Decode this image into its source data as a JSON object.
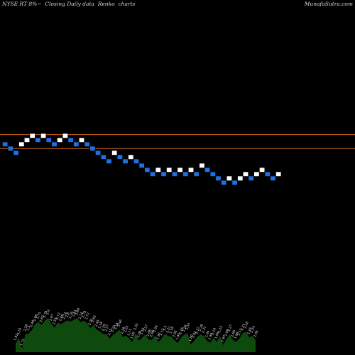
{
  "header": {
    "title": "NYSE RT 8%~  Closing Daily data  Renko  charts",
    "watermark": "MunafaSutra.com"
  },
  "colors": {
    "background": "#000000",
    "up_brick": "#ffffff",
    "down_brick": "#1e6fe0",
    "brick_stroke": "#000000",
    "reference_line": "#d2691e",
    "volume": "#0e4a0e"
  },
  "chart_data": {
    "type": "renko",
    "reference_lines": [
      5.92,
      5.3
    ],
    "bricks": [
      {
        "d": "down",
        "y": 5.49
      },
      {
        "d": "down",
        "y": 5.3
      },
      {
        "d": "down",
        "y": 5.11
      },
      {
        "d": "up",
        "y": 5.49
      },
      {
        "d": "up",
        "y": 5.68
      },
      {
        "d": "up",
        "y": 5.87
      },
      {
        "d": "down",
        "y": 5.68
      },
      {
        "d": "up",
        "y": 5.87
      },
      {
        "d": "down",
        "y": 5.68
      },
      {
        "d": "down",
        "y": 5.49
      },
      {
        "d": "up",
        "y": 5.68
      },
      {
        "d": "up",
        "y": 5.87
      },
      {
        "d": "down",
        "y": 5.68
      },
      {
        "d": "down",
        "y": 5.49
      },
      {
        "d": "up",
        "y": 5.68
      },
      {
        "d": "down",
        "y": 5.49
      },
      {
        "d": "down",
        "y": 5.3
      },
      {
        "d": "down",
        "y": 5.11
      },
      {
        "d": "down",
        "y": 4.92
      },
      {
        "d": "down",
        "y": 4.73
      },
      {
        "d": "up",
        "y": 5.11
      },
      {
        "d": "down",
        "y": 4.92
      },
      {
        "d": "down",
        "y": 4.73
      },
      {
        "d": "up",
        "y": 4.92
      },
      {
        "d": "down",
        "y": 4.73
      },
      {
        "d": "down",
        "y": 4.54
      },
      {
        "d": "down",
        "y": 4.35
      },
      {
        "d": "down",
        "y": 4.16
      },
      {
        "d": "up",
        "y": 4.35
      },
      {
        "d": "down",
        "y": 4.16
      },
      {
        "d": "up",
        "y": 4.35
      },
      {
        "d": "down",
        "y": 4.16
      },
      {
        "d": "up",
        "y": 4.35
      },
      {
        "d": "down",
        "y": 4.16
      },
      {
        "d": "up",
        "y": 4.35
      },
      {
        "d": "down",
        "y": 4.16
      },
      {
        "d": "up",
        "y": 4.54
      },
      {
        "d": "down",
        "y": 4.35
      },
      {
        "d": "down",
        "y": 4.16
      },
      {
        "d": "down",
        "y": 3.97
      },
      {
        "d": "down",
        "y": 3.78
      },
      {
        "d": "up",
        "y": 3.97
      },
      {
        "d": "down",
        "y": 3.78
      },
      {
        "d": "up",
        "y": 3.97
      },
      {
        "d": "up",
        "y": 4.16
      },
      {
        "d": "down",
        "y": 3.97
      },
      {
        "d": "up",
        "y": 4.16
      },
      {
        "d": "up",
        "y": 4.35
      },
      {
        "d": "down",
        "y": 4.16
      },
      {
        "d": "down",
        "y": 3.97
      },
      {
        "d": "up",
        "y": 4.16
      }
    ],
    "volume_labels": [
      "1.92",
      "2.14",
      "1.73",
      "2.28",
      "2.3",
      "2.44",
      "2.66",
      "2.75",
      "2.62",
      "2.79",
      "2.9",
      "2.67",
      "2.53",
      "2.72",
      "2.66",
      "2.74",
      "2.8",
      "2.76",
      "2.83",
      "2.89",
      "2.74",
      "2.79",
      "2.72",
      "2.51",
      "2.62",
      "2.45",
      "2.38",
      "2.29",
      "2.27",
      "2.12",
      "2.25",
      "2.34",
      "2.46",
      "2.18",
      "2.23",
      "2.11",
      "1.99",
      "2.32",
      "2.04",
      "2.15",
      "2.27",
      "2.08",
      "2.06",
      "2.24",
      "1.97",
      "2.12",
      "2.3",
      "2.21",
      "2.19",
      "2.05",
      "1.95",
      "2.16",
      "2.26",
      "2.33",
      "1.89",
      "2.02",
      "2.17",
      "2.28",
      "2.21",
      "2.04",
      "1.95",
      "2.14",
      "1.99",
      "2.22",
      "1.87",
      "2.09",
      "2.27",
      "2.06",
      "1.99",
      "2.12",
      "2.31",
      "2.38",
      "2.16",
      "2.22",
      "2.05"
    ]
  }
}
